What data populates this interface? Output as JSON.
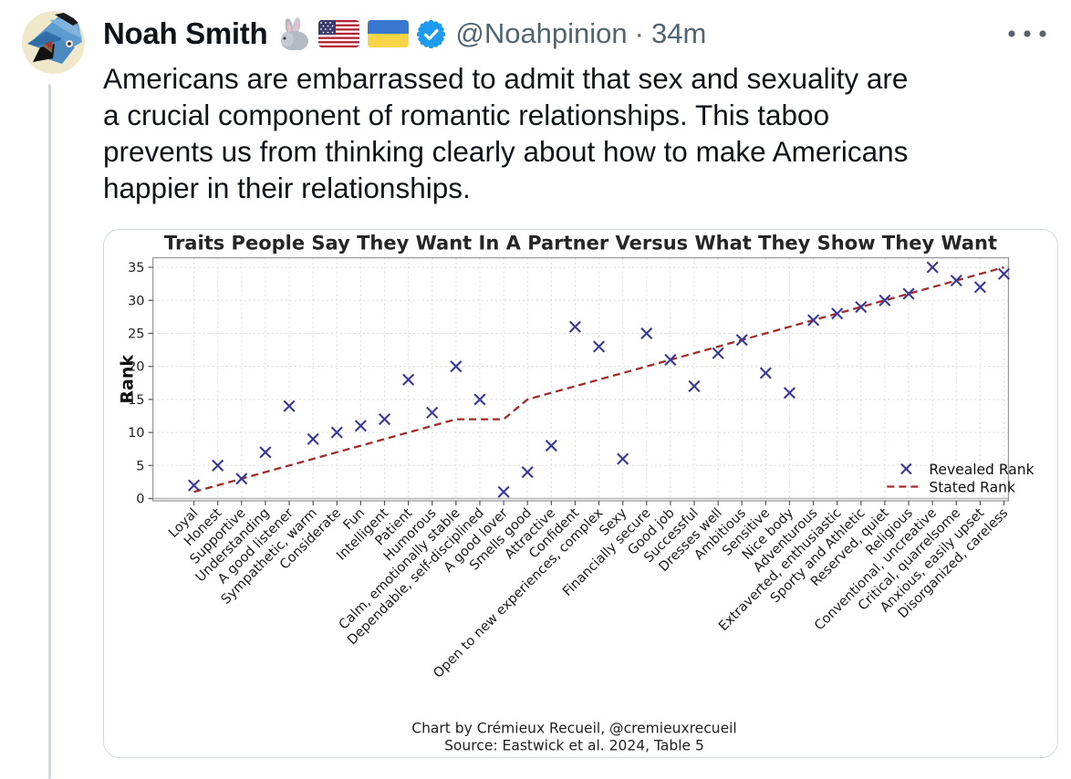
{
  "tweet": {
    "name": "Noah Smith",
    "handle": "@Noahpinion",
    "separator": "·",
    "time": "34m",
    "text": "Americans are embarrassed to admit that sex and sexuality are\na crucial component of romantic relationships. This taboo\nprevents us from thinking clearly about how to make Americans\nhappier in their relationships.",
    "icons": {
      "rabbit": "rabbit-emoji",
      "us_flag": "us-flag-emoji",
      "ua_flag": "ukraine-flag-emoji",
      "verified": "verified-badge-icon",
      "more": "more-menu-icon"
    },
    "colors": {
      "text": "#0f1419",
      "secondary": "#536471",
      "verified_blue": "#1d9bf0",
      "card_border": "#cfd9de"
    }
  },
  "chart_data": {
    "type": "scatter",
    "title": "Traits People Say They Want In A Partner Versus What They Show They Want",
    "ylabel": "Rank",
    "xlabel": "",
    "grid": true,
    "legend_position": "lower right",
    "ylim": [
      0,
      36.5
    ],
    "yticks": [
      0,
      5,
      10,
      15,
      20,
      25,
      30,
      35
    ],
    "categories": [
      "Loyal",
      "Honest",
      "Supportive",
      "Understanding",
      "A good listener",
      "Sympathetic, warm",
      "Considerate",
      "Fun",
      "Intelligent",
      "Patient",
      "Humorous",
      "Calm, emotionally stable",
      "Dependable, self-disciplined",
      "A good lover",
      "Smells good",
      "Attractive",
      "Confident",
      "Open to new experiences, complex",
      "Sexy",
      "Financially secure",
      "Good job",
      "Successful",
      "Dresses well",
      "Ambitious",
      "Sensitive",
      "Nice body",
      "Adventurous",
      "Extraverted, enthusiastic",
      "Sporty and Athletic",
      "Reserved, quiet",
      "Religious",
      "Conventional, uncreative",
      "Critical, quarrelsome",
      "Anxious, easily upset",
      "Disorganized, careless"
    ],
    "series": [
      {
        "name": "Revealed Rank",
        "style": "x-markers",
        "color": "#38389b",
        "values": [
          2,
          5,
          3,
          7,
          14,
          9,
          10,
          11,
          12,
          18,
          13,
          20,
          15,
          1,
          4,
          8,
          26,
          23,
          6,
          25,
          21,
          17,
          22,
          24,
          19,
          16,
          27,
          28,
          29,
          30,
          31,
          35,
          33,
          32,
          34
        ]
      },
      {
        "name": "Stated Rank",
        "style": "dashed-line",
        "color": "#a22c29",
        "values": [
          1,
          2,
          3,
          4,
          5,
          6,
          7,
          8,
          9,
          10,
          11,
          12,
          12,
          12,
          15,
          16,
          17,
          18,
          19,
          20,
          21,
          22,
          23,
          24,
          25,
          26,
          27,
          28,
          29,
          30,
          31,
          32,
          33,
          34,
          35
        ]
      }
    ],
    "caption": [
      "Chart by Crémieux Recueil, @cremieuxrecueil",
      "Source: Eastwick et al. 2024, Table 5"
    ]
  }
}
